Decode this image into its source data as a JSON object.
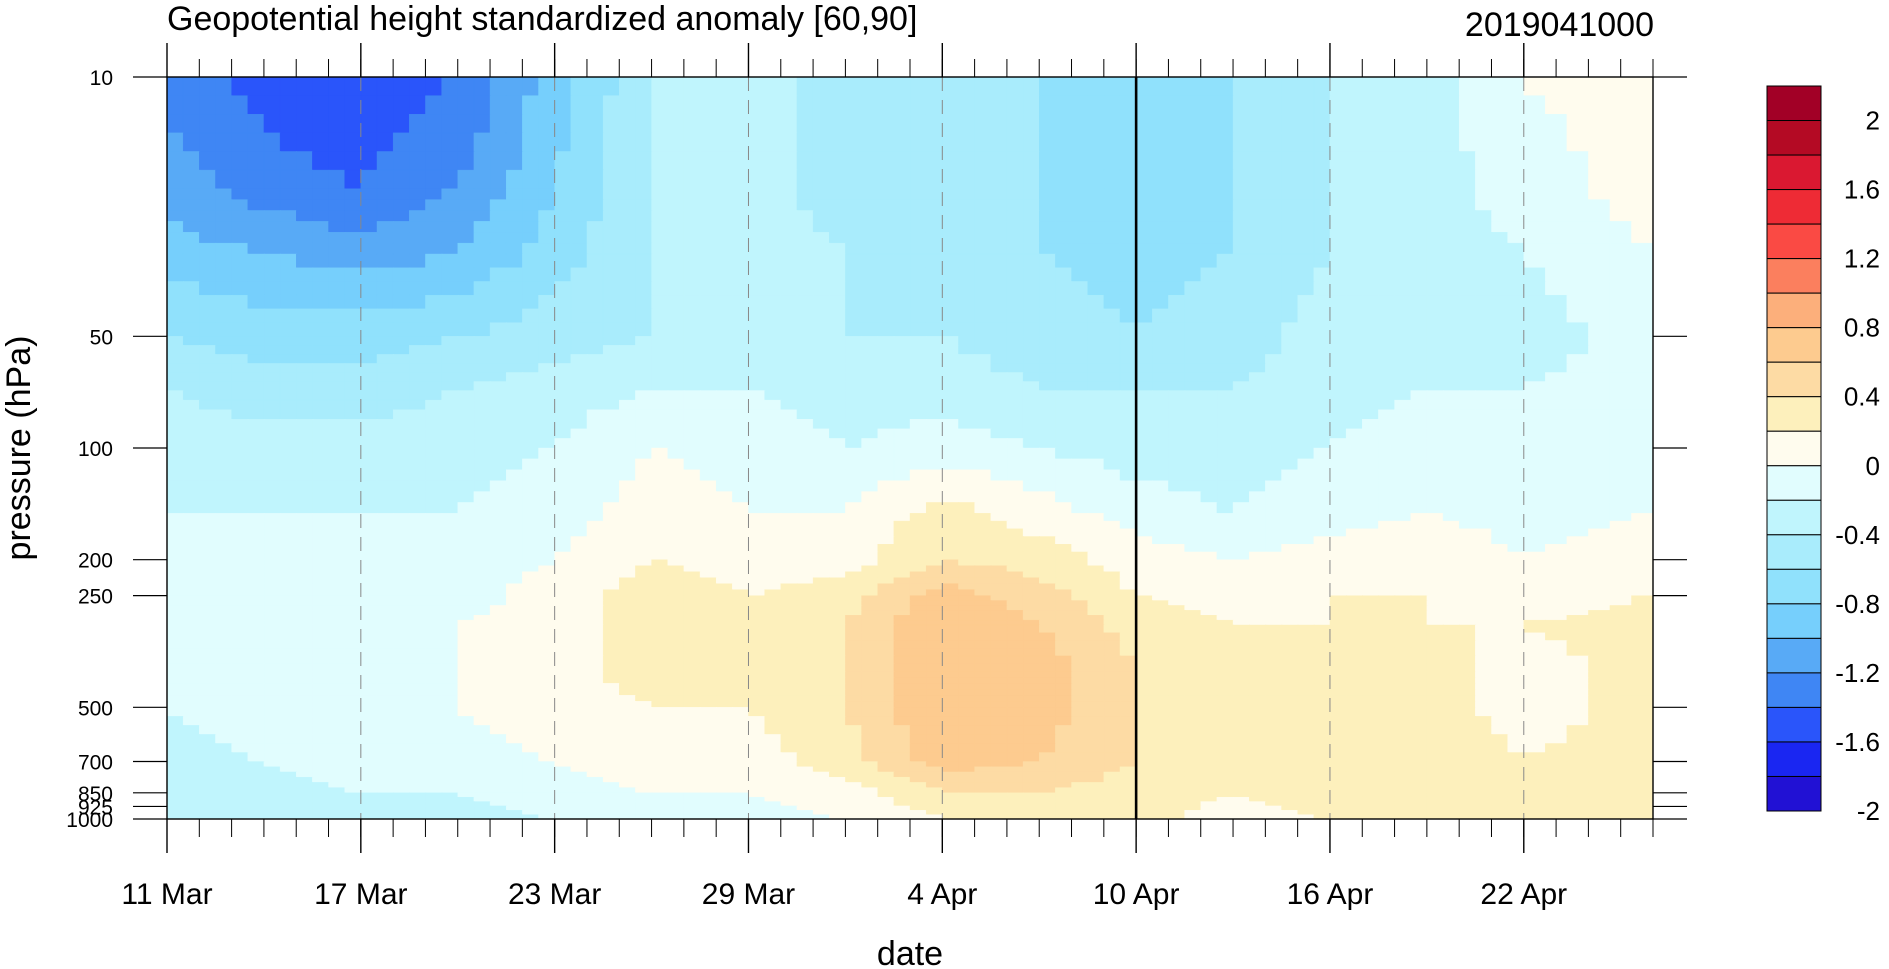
{
  "chart_data": {
    "type": "heatmap",
    "subtype": "filled-contour",
    "title": "Geopotential height standardized anomaly [60,90]",
    "right_title": "2019041000",
    "xlabel": "date",
    "ylabel": "pressure (hPa)",
    "y_scale": "log",
    "y_reversed": true,
    "x_range": [
      "2019-03-11",
      "2019-04-26"
    ],
    "y_range": [
      1000,
      10
    ],
    "grid": "dashed vertical lines at major date ticks",
    "x_major_ticks": [
      {
        "date": "2019-03-11",
        "label": "11 Mar"
      },
      {
        "date": "2019-03-17",
        "label": "17 Mar"
      },
      {
        "date": "2019-03-23",
        "label": "23 Mar"
      },
      {
        "date": "2019-03-29",
        "label": "29 Mar"
      },
      {
        "date": "2019-04-04",
        "label": "4 Apr"
      },
      {
        "date": "2019-04-10",
        "label": "10 Apr"
      },
      {
        "date": "2019-04-16",
        "label": "16 Apr"
      },
      {
        "date": "2019-04-22",
        "label": "22 Apr"
      }
    ],
    "y_ticks": [
      {
        "p": 10,
        "label": "10"
      },
      {
        "p": 50,
        "label": "50"
      },
      {
        "p": 100,
        "label": "100"
      },
      {
        "p": 200,
        "label": "200"
      },
      {
        "p": 250,
        "label": "250"
      },
      {
        "p": 500,
        "label": "500"
      },
      {
        "p": 700,
        "label": "700"
      },
      {
        "p": 850,
        "label": "850"
      },
      {
        "p": 925,
        "label": "925"
      },
      {
        "p": 1000,
        "label": "1000"
      }
    ],
    "forecast_start": "2019-04-10",
    "contour_levels": [
      -2.2,
      -2.0,
      -1.8,
      -1.6,
      -1.4,
      -1.2,
      -1.0,
      -0.8,
      -0.6,
      -0.4,
      -0.2,
      0,
      0.2,
      0.4,
      0.6,
      0.8,
      1.0,
      1.2,
      1.4,
      1.6,
      1.8,
      2.0
    ],
    "colorbar": {
      "colors": [
        "#2111d4",
        "#1a26f2",
        "#2a55fa",
        "#3f86f4",
        "#58aaf6",
        "#76cffc",
        "#90e1fc",
        "#a9ecfc",
        "#c0f5fd",
        "#e1fdfe",
        "#fffcee",
        "#fdf0bc",
        "#fddba4",
        "#fdcb8f",
        "#fcaf7b",
        "#fb7f5e",
        "#fa4a44",
        "#ee2b35",
        "#da1831",
        "#b40a24",
        "#a20026"
      ],
      "labels": [
        "2",
        "1.6",
        "1.2",
        "0.8",
        "0.4",
        "0",
        "-0.4",
        "-0.8",
        "-1.2",
        "-1.6",
        "-2"
      ]
    },
    "field": {
      "dates": [
        "2019-03-11",
        "2019-03-14",
        "2019-03-17",
        "2019-03-20",
        "2019-03-23",
        "2019-03-26",
        "2019-03-29",
        "2019-04-01",
        "2019-04-04",
        "2019-04-07",
        "2019-04-10",
        "2019-04-13",
        "2019-04-16",
        "2019-04-19",
        "2019-04-22",
        "2019-04-26"
      ],
      "pressure_hPa": [
        10,
        20,
        30,
        50,
        70,
        100,
        150,
        200,
        250,
        300,
        400,
        500,
        700,
        850,
        1000
      ],
      "values": [
        [
          -1.5,
          -1.7,
          -1.8,
          -1.6,
          -1.1,
          -0.6,
          -0.5,
          -0.7,
          -0.8,
          -0.8,
          -0.9,
          -0.8,
          -0.6,
          -0.5,
          -0.2,
          -0.1
        ],
        [
          -1.3,
          -1.5,
          -1.6,
          -1.4,
          -1.0,
          -0.6,
          -0.5,
          -0.7,
          -0.8,
          -0.8,
          -0.9,
          -0.8,
          -0.6,
          -0.5,
          -0.3,
          -0.1
        ],
        [
          -1.1,
          -1.2,
          -1.3,
          -1.2,
          -0.9,
          -0.6,
          -0.5,
          -0.6,
          -0.7,
          -0.8,
          -0.9,
          -0.8,
          -0.6,
          -0.5,
          -0.4,
          -0.2
        ],
        [
          -0.8,
          -0.9,
          -0.9,
          -0.8,
          -0.7,
          -0.6,
          -0.5,
          -0.6,
          -0.6,
          -0.7,
          -0.8,
          -0.7,
          -0.5,
          -0.5,
          -0.5,
          -0.3
        ],
        [
          -0.6,
          -0.7,
          -0.7,
          -0.6,
          -0.5,
          -0.4,
          -0.4,
          -0.5,
          -0.5,
          -0.6,
          -0.6,
          -0.6,
          -0.5,
          -0.4,
          -0.4,
          -0.3
        ],
        [
          -0.5,
          -0.5,
          -0.5,
          -0.5,
          -0.4,
          -0.2,
          -0.3,
          -0.4,
          -0.3,
          -0.4,
          -0.5,
          -0.5,
          -0.4,
          -0.3,
          -0.4,
          -0.3
        ],
        [
          -0.4,
          -0.4,
          -0.4,
          -0.4,
          -0.3,
          -0.1,
          -0.2,
          -0.2,
          0.1,
          -0.1,
          -0.3,
          -0.4,
          -0.3,
          -0.2,
          -0.3,
          -0.2
        ],
        [
          -0.4,
          -0.4,
          -0.4,
          -0.3,
          -0.2,
          0.0,
          -0.1,
          -0.1,
          0.2,
          0.1,
          -0.1,
          -0.2,
          -0.1,
          0.0,
          -0.2,
          -0.1
        ],
        [
          -0.4,
          -0.4,
          -0.3,
          -0.3,
          -0.1,
          0.1,
          0.0,
          0.1,
          0.5,
          0.3,
          0.0,
          -0.1,
          0.0,
          0.0,
          -0.1,
          0.0
        ],
        [
          -0.4,
          -0.4,
          -0.3,
          -0.2,
          -0.1,
          0.1,
          0.0,
          0.2,
          0.6,
          0.4,
          0.1,
          0.0,
          0.0,
          0.0,
          0.0,
          0.1
        ],
        [
          -0.4,
          -0.3,
          -0.3,
          -0.2,
          -0.1,
          0.1,
          0.0,
          0.2,
          0.6,
          0.5,
          0.2,
          0.1,
          0.1,
          0.1,
          -0.1,
          0.1
        ],
        [
          -0.4,
          -0.3,
          -0.3,
          -0.2,
          -0.1,
          0.0,
          0.0,
          0.2,
          0.6,
          0.5,
          0.2,
          0.1,
          0.1,
          0.1,
          -0.1,
          0.1
        ],
        [
          -0.5,
          -0.4,
          -0.3,
          -0.3,
          -0.2,
          -0.1,
          -0.1,
          0.1,
          0.5,
          0.4,
          0.2,
          0.1,
          0.2,
          0.2,
          0.0,
          0.1
        ],
        [
          -0.6,
          -0.5,
          -0.4,
          -0.4,
          -0.3,
          -0.2,
          -0.2,
          -0.1,
          0.2,
          0.2,
          0.1,
          0.0,
          0.1,
          0.1,
          0.0,
          0.1
        ],
        [
          -0.6,
          -0.6,
          -0.5,
          -0.5,
          -0.4,
          -0.3,
          -0.3,
          -0.2,
          0.0,
          0.1,
          0.1,
          -0.1,
          0.0,
          0.1,
          0.0,
          0.1
        ]
      ]
    }
  }
}
